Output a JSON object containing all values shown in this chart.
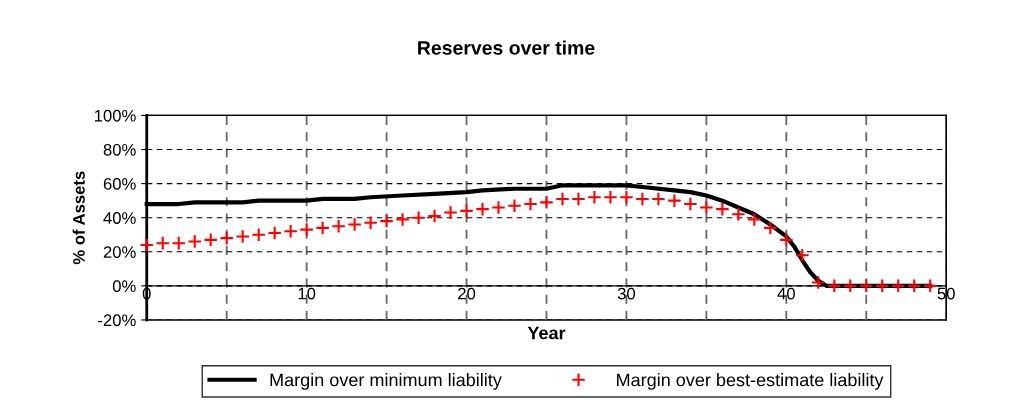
{
  "chart_data": {
    "type": "line",
    "title": "Reserves over time",
    "xlabel": "Year",
    "ylabel": "% of Assets",
    "xlim": [
      0,
      50
    ],
    "xticks": [
      0,
      {
        "value": 5,
        "label": null
      },
      10,
      {
        "value": 15,
        "label": null
      },
      20,
      {
        "value": 25,
        "label": null
      },
      30,
      {
        "value": 35,
        "label": null
      },
      40,
      {
        "value": 45,
        "label": null
      },
      50
    ],
    "ylim": [
      -20,
      100
    ],
    "yticks": [
      {
        "value": -20,
        "label": "-20%"
      },
      {
        "value": 0,
        "label": "0%"
      },
      {
        "value": 20,
        "label": "20%"
      },
      {
        "value": 40,
        "label": "40%"
      },
      {
        "value": 60,
        "label": "60%"
      },
      {
        "value": 80,
        "label": "80%"
      },
      {
        "value": 100,
        "label": "100%"
      }
    ],
    "grid": true,
    "legend": "bottom",
    "series": [
      {
        "name": "Margin over minimum liability",
        "color": "#000000",
        "marker": "none",
        "line_style": "solid",
        "x": [
          0,
          2,
          3,
          5,
          6,
          7,
          10,
          11,
          13,
          14,
          16,
          18,
          20,
          21,
          23,
          25,
          26,
          30,
          31,
          33,
          34,
          35,
          36,
          37,
          38,
          39,
          40,
          40.5,
          41,
          41.5,
          42,
          42.5,
          45,
          49
        ],
        "values": [
          48,
          48,
          49,
          49,
          49,
          50,
          50,
          51,
          51,
          52,
          53,
          54,
          55,
          56,
          57,
          57,
          59,
          59,
          58,
          56,
          55,
          53,
          50,
          46,
          42,
          36,
          29,
          23,
          15,
          8,
          3,
          0,
          0,
          0
        ]
      },
      {
        "name": "Margin over best-estimate liability",
        "type": "scatter",
        "color": "#ff0000",
        "marker": "cross",
        "x": [
          0,
          1,
          2,
          3,
          4,
          5,
          6,
          7,
          8,
          9,
          10,
          11,
          12,
          13,
          14,
          15,
          16,
          17,
          18,
          19,
          20,
          21,
          22,
          23,
          24,
          25,
          26,
          27,
          28,
          29,
          30,
          31,
          32,
          33,
          34,
          35,
          36,
          37,
          38,
          39,
          40,
          41,
          42,
          43,
          44,
          45,
          46,
          47,
          48,
          49
        ],
        "values": [
          24,
          25,
          25,
          26,
          27,
          28,
          29,
          30,
          31,
          32,
          33,
          34,
          35,
          36,
          37,
          38,
          39,
          40,
          41,
          43,
          44,
          45,
          46,
          47,
          48,
          49,
          51,
          51,
          52,
          52,
          52,
          51,
          51,
          50,
          48,
          46,
          45,
          42,
          39,
          34,
          27,
          18,
          2,
          0,
          0,
          0,
          0,
          0,
          0,
          0
        ]
      }
    ]
  }
}
